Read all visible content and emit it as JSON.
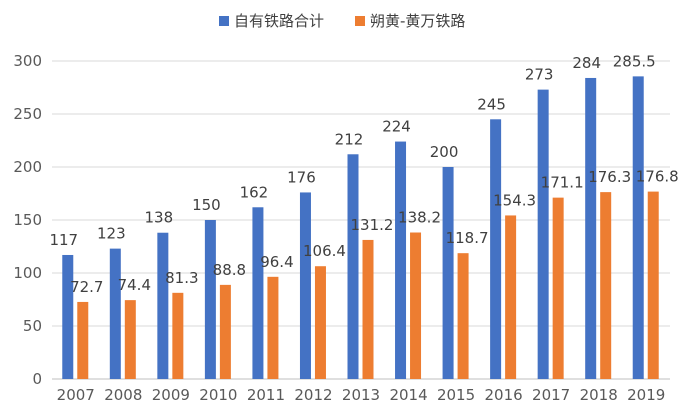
{
  "chart_data": {
    "type": "bar",
    "title": "",
    "xlabel": "",
    "ylabel": "",
    "ylim": [
      0,
      300
    ],
    "yticks": [
      "0",
      "50",
      "100",
      "150",
      "200",
      "250",
      "300"
    ],
    "grid": true,
    "legend_position": "top-center",
    "categories": [
      "2007",
      "2008",
      "2009",
      "2010",
      "2011",
      "2012",
      "2013",
      "2014",
      "2015",
      "2016",
      "2017",
      "2018",
      "2019"
    ],
    "series": [
      {
        "name": "自有铁路合计",
        "color": "#4472C4",
        "values": [
          117,
          123,
          138,
          150,
          162,
          176,
          212,
          224,
          200,
          245,
          273,
          284,
          285.5
        ],
        "labels": [
          "117",
          "123",
          "138",
          "150",
          "162",
          "176",
          "212",
          "224",
          "200",
          "245",
          "273",
          "284",
          "285.5"
        ]
      },
      {
        "name": "朔黄-黄万铁路",
        "color": "#ED7D31",
        "values": [
          72.7,
          74.4,
          81.3,
          88.8,
          96.4,
          106.4,
          131.2,
          138.2,
          118.7,
          154.3,
          171.1,
          176.3,
          176.8
        ],
        "labels": [
          "72.7",
          "74.4",
          "81.3",
          "88.8",
          "96.4",
          "106.4",
          "131.2",
          "138.2",
          "118.7",
          "154.3",
          "171.1",
          "176.3",
          "176.8"
        ]
      }
    ]
  }
}
